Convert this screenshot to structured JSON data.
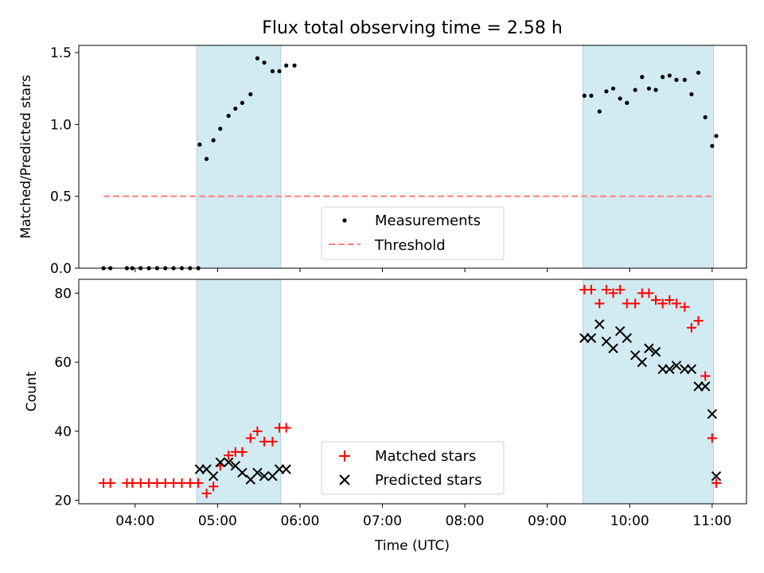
{
  "chart_data": [
    {
      "type": "scatter",
      "title": "Flux total observing time = 2.58 h",
      "xlabel": "",
      "ylabel": "Matched/Predicted stars",
      "xlim": [
        "03:19",
        "11:25"
      ],
      "ylim": [
        0,
        1.55
      ],
      "yticks": [
        "0.0",
        "0.5",
        "1.0",
        "1.5"
      ],
      "shaded_intervals": [
        [
          "04:45",
          "05:46"
        ],
        [
          "09:26",
          "11:01"
        ]
      ],
      "shade_color": "#add8e6",
      "legend_position": "lower center",
      "series": [
        {
          "name": "Measurements",
          "marker": "dot",
          "color": "#000000",
          "points": [
            [
              "03:37",
              0
            ],
            [
              "03:42",
              0
            ],
            [
              "03:54",
              0
            ],
            [
              "03:58",
              0
            ],
            [
              "04:04",
              0
            ],
            [
              "04:10",
              0
            ],
            [
              "04:16",
              0
            ],
            [
              "04:22",
              0
            ],
            [
              "04:28",
              0
            ],
            [
              "04:34",
              0
            ],
            [
              "04:40",
              0
            ],
            [
              "04:46",
              0
            ],
            [
              "04:47",
              0.86
            ],
            [
              "04:52",
              0.76
            ],
            [
              "04:57",
              0.89
            ],
            [
              "05:02",
              0.97
            ],
            [
              "05:08",
              1.06
            ],
            [
              "05:13",
              1.11
            ],
            [
              "05:18",
              1.15
            ],
            [
              "05:24",
              1.21
            ],
            [
              "05:29",
              1.46
            ],
            [
              "05:34",
              1.43
            ],
            [
              "05:40",
              1.37
            ],
            [
              "05:45",
              1.37
            ],
            [
              "05:50",
              1.41
            ],
            [
              "05:56",
              1.41
            ],
            [
              "09:27",
              1.2
            ],
            [
              "09:32",
              1.2
            ],
            [
              "09:38",
              1.09
            ],
            [
              "09:43",
              1.23
            ],
            [
              "09:48",
              1.25
            ],
            [
              "09:53",
              1.18
            ],
            [
              "09:58",
              1.15
            ],
            [
              "10:04",
              1.24
            ],
            [
              "10:09",
              1.33
            ],
            [
              "10:14",
              1.25
            ],
            [
              "10:19",
              1.24
            ],
            [
              "10:24",
              1.33
            ],
            [
              "10:29",
              1.34
            ],
            [
              "10:34",
              1.31
            ],
            [
              "10:40",
              1.31
            ],
            [
              "10:45",
              1.21
            ],
            [
              "10:50",
              1.36
            ],
            [
              "10:55",
              1.05
            ],
            [
              "11:00",
              0.85
            ],
            [
              "11:03",
              0.92
            ]
          ]
        },
        {
          "name": "Threshold",
          "marker": "dashed-line",
          "color": "#ff7f7f",
          "value": 0.5,
          "x_range": [
            "03:37",
            "11:00"
          ]
        }
      ]
    },
    {
      "type": "scatter",
      "title": "",
      "xlabel": "Time (UTC)",
      "ylabel": "Count",
      "xlim": [
        "03:19",
        "11:25"
      ],
      "ylim": [
        19,
        84
      ],
      "xticks": [
        "04:00",
        "05:00",
        "06:00",
        "07:00",
        "08:00",
        "09:00",
        "10:00",
        "11:00"
      ],
      "yticks": [
        "20",
        "40",
        "60",
        "80"
      ],
      "shaded_intervals": [
        [
          "04:45",
          "05:46"
        ],
        [
          "09:26",
          "11:01"
        ]
      ],
      "legend_position": "lower center",
      "series": [
        {
          "name": "Matched stars",
          "marker": "plus",
          "color": "#ff0000",
          "points": [
            [
              "03:37",
              25
            ],
            [
              "03:42",
              25
            ],
            [
              "03:54",
              25
            ],
            [
              "03:58",
              25
            ],
            [
              "04:04",
              25
            ],
            [
              "04:10",
              25
            ],
            [
              "04:16",
              25
            ],
            [
              "04:22",
              25
            ],
            [
              "04:28",
              25
            ],
            [
              "04:34",
              25
            ],
            [
              "04:40",
              25
            ],
            [
              "04:46",
              25
            ],
            [
              "04:52",
              22
            ],
            [
              "04:57",
              24
            ],
            [
              "05:02",
              30
            ],
            [
              "05:08",
              33
            ],
            [
              "05:13",
              34
            ],
            [
              "05:18",
              34
            ],
            [
              "05:24",
              38
            ],
            [
              "05:29",
              40
            ],
            [
              "05:34",
              37
            ],
            [
              "05:40",
              37
            ],
            [
              "05:45",
              41
            ],
            [
              "05:50",
              41
            ],
            [
              "09:27",
              81
            ],
            [
              "09:32",
              81
            ],
            [
              "09:38",
              77
            ],
            [
              "09:43",
              81
            ],
            [
              "09:48",
              80
            ],
            [
              "09:53",
              81
            ],
            [
              "09:58",
              77
            ],
            [
              "10:04",
              77
            ],
            [
              "10:09",
              80
            ],
            [
              "10:14",
              80
            ],
            [
              "10:19",
              78
            ],
            [
              "10:24",
              77
            ],
            [
              "10:29",
              78
            ],
            [
              "10:34",
              77
            ],
            [
              "10:40",
              76
            ],
            [
              "10:45",
              70
            ],
            [
              "10:50",
              72
            ],
            [
              "10:55",
              56
            ],
            [
              "11:00",
              38
            ],
            [
              "11:03",
              25
            ]
          ]
        },
        {
          "name": "Predicted stars",
          "marker": "x",
          "color": "#000000",
          "points": [
            [
              "04:47",
              29
            ],
            [
              "04:52",
              29
            ],
            [
              "04:57",
              27
            ],
            [
              "05:02",
              31
            ],
            [
              "05:08",
              31
            ],
            [
              "05:13",
              30
            ],
            [
              "05:18",
              28
            ],
            [
              "05:24",
              26
            ],
            [
              "05:29",
              28
            ],
            [
              "05:34",
              27
            ],
            [
              "05:40",
              27
            ],
            [
              "05:45",
              29
            ],
            [
              "05:50",
              29
            ],
            [
              "09:27",
              67
            ],
            [
              "09:32",
              67
            ],
            [
              "09:38",
              71
            ],
            [
              "09:43",
              66
            ],
            [
              "09:48",
              64
            ],
            [
              "09:53",
              69
            ],
            [
              "09:58",
              67
            ],
            [
              "10:04",
              62
            ],
            [
              "10:09",
              60
            ],
            [
              "10:14",
              64
            ],
            [
              "10:19",
              63
            ],
            [
              "10:24",
              58
            ],
            [
              "10:29",
              58
            ],
            [
              "10:34",
              59
            ],
            [
              "10:40",
              58
            ],
            [
              "10:45",
              58
            ],
            [
              "10:50",
              53
            ],
            [
              "10:55",
              53
            ],
            [
              "11:00",
              45
            ],
            [
              "11:03",
              27
            ]
          ]
        }
      ]
    }
  ]
}
